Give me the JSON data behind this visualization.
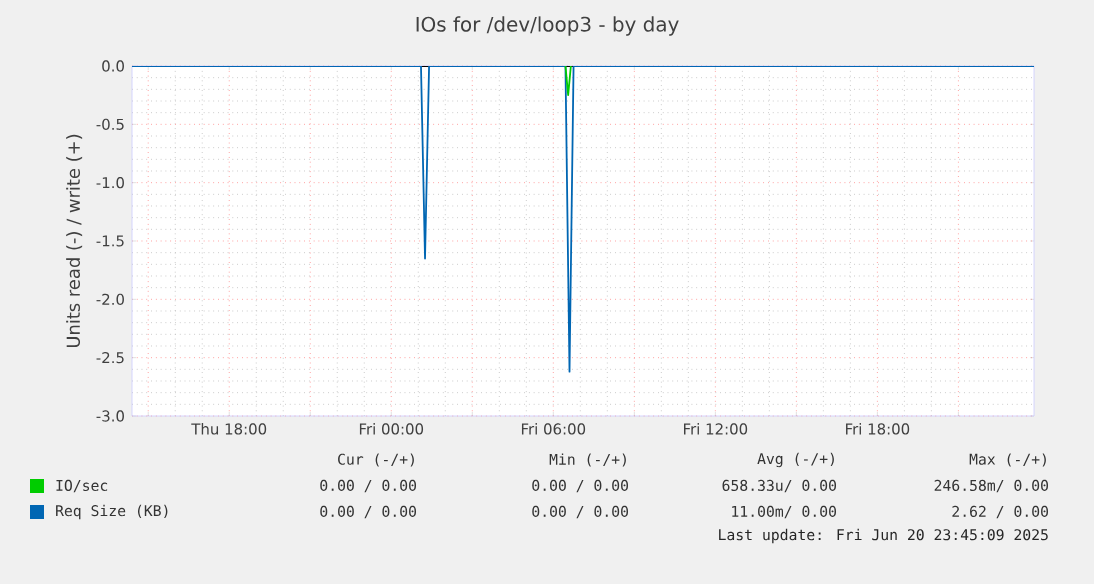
{
  "chart_data": {
    "type": "line",
    "title": "IOs for /dev/loop3 - by day",
    "ylabel": "Units read (-) / write (+)",
    "xlim": [
      "2025-06-19T14:24",
      "2025-06-20T23:48"
    ],
    "ylim": [
      -3.0,
      0.0
    ],
    "xticks": [
      {
        "value": "2025-06-19T15:00",
        "label": null
      },
      {
        "value": "2025-06-19T18:00",
        "label": "Thu 18:00"
      },
      {
        "value": "2025-06-19T21:00",
        "label": null
      },
      {
        "value": "2025-06-20T00:00",
        "label": "Fri 00:00"
      },
      {
        "value": "2025-06-20T03:00",
        "label": null
      },
      {
        "value": "2025-06-20T06:00",
        "label": "Fri 06:00"
      },
      {
        "value": "2025-06-20T09:00",
        "label": null
      },
      {
        "value": "2025-06-20T12:00",
        "label": "Fri 12:00"
      },
      {
        "value": "2025-06-20T15:00",
        "label": null
      },
      {
        "value": "2025-06-20T18:00",
        "label": "Fri 18:00"
      },
      {
        "value": "2025-06-20T21:00",
        "label": null
      }
    ],
    "yticks": [
      {
        "value": -3.0,
        "label": "-3.0"
      },
      {
        "value": -2.5,
        "label": "-2.5"
      },
      {
        "value": -2.0,
        "label": "-2.0"
      },
      {
        "value": -1.5,
        "label": "-1.5"
      },
      {
        "value": -1.0,
        "label": "-1.0"
      },
      {
        "value": -0.5,
        "label": "-0.5"
      },
      {
        "value": 0.0,
        "label": "0.0"
      }
    ],
    "grid": true,
    "legend": "bottom",
    "marker": "none",
    "line_style": "solid",
    "ref_lines": [
      {
        "axis": "y",
        "value": 0,
        "color": "#000000"
      }
    ],
    "series": [
      {
        "name": "IO/sec",
        "color": "#00cc00",
        "x": [
          "2025-06-20T06:27",
          "2025-06-20T06:33",
          "2025-06-20T06:39"
        ],
        "values": [
          0,
          -0.25,
          0
        ]
      },
      {
        "name": "Req Size (KB)",
        "color": "#0066b3",
        "x": [
          "2025-06-19T14:24",
          "2025-06-20T01:06",
          "2025-06-20T01:15",
          "2025-06-20T01:24",
          "2025-06-20T06:27",
          "2025-06-20T06:36",
          "2025-06-20T06:45",
          "2025-06-20T23:48"
        ],
        "values": [
          0,
          0,
          -1.65,
          0,
          0,
          -2.62,
          0,
          0
        ]
      }
    ],
    "annotations": [
      "Cur (-/+)",
      "Min (-/+)",
      "Avg (-/+)",
      "Max (-/+)",
      "0.00 /  0.00",
      "0.00 /  0.00",
      "658.33u/  0.00",
      "246.58m/  0.00",
      "0.00 /  0.00",
      "0.00 /  0.00",
      "11.00m/  0.00",
      "2.62 /  0.00",
      "Last update: Fri Jun 20 23:45:09 2025"
    ]
  }
}
